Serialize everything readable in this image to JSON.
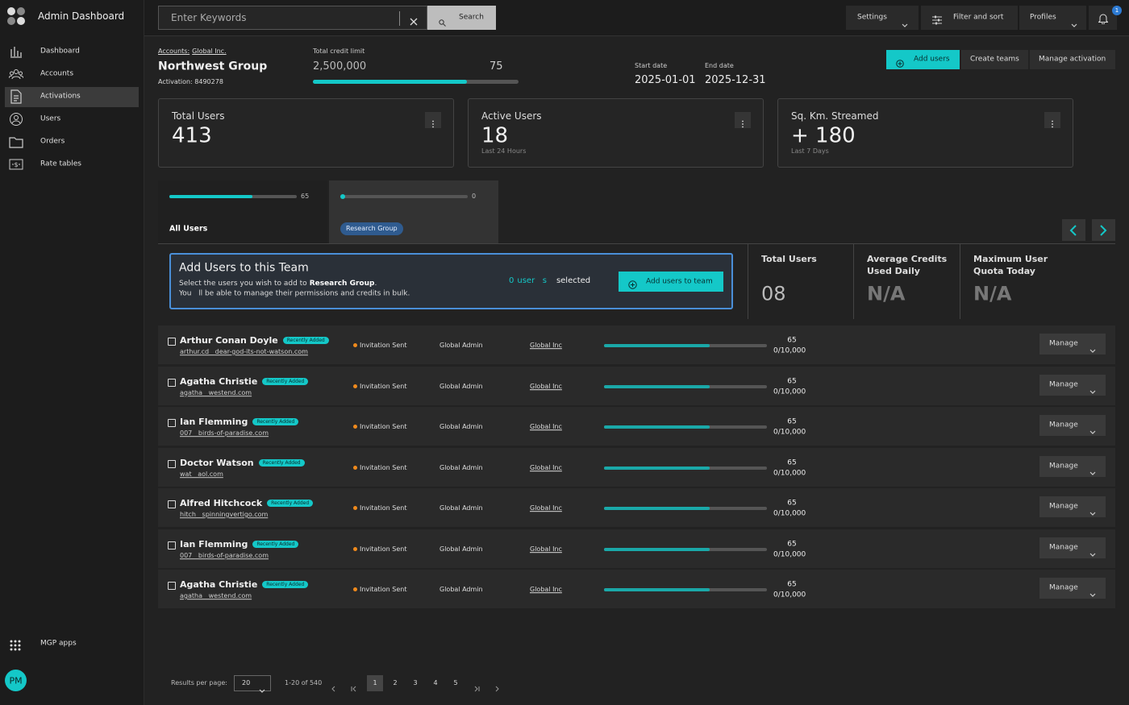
{
  "sidebar": {
    "title": "Admin Dashboard",
    "nav": [
      "Dashboard",
      "Accounts",
      "Activations",
      "Users",
      "Orders",
      "Rate tables"
    ],
    "apps": "MGP apps",
    "avatar": "PM"
  },
  "topbar": {
    "search_placeholder": "Enter Keywords",
    "search_button": "Search",
    "settings": "Settings",
    "filter": "Filter and sort",
    "profiles": "Profiles",
    "notifications": 1
  },
  "header": {
    "breadcrumb_label": "Accounts:",
    "breadcrumb_link": "Global Inc.",
    "title": "Northwest Group",
    "activation": "Activation: 8490278",
    "credit_label": "Total credit limit",
    "credit_value": "2,500,000",
    "credit_progress": 75,
    "start_label": "Start date",
    "start_date": "2025-01-01",
    "end_label": "End date",
    "end_date": "2025-12-31",
    "buttons": [
      "Add users",
      "Create teams",
      "Manage activation"
    ]
  },
  "stats": [
    {
      "title": "Total Users",
      "value": 413
    },
    {
      "title": "Active Users",
      "value": 18,
      "note": "Last 24 Hours"
    },
    {
      "title": "Sq. Km. Streamed",
      "value": "+ 180",
      "note": "Last 7 Days"
    }
  ],
  "tabs": [
    {
      "progress": 65,
      "label": "All Users"
    },
    {
      "progress": 0,
      "label": "Research Group"
    }
  ],
  "add_panel": {
    "title": "Add Users to this Team",
    "text": "Select the users you wish to add to",
    "group": "Research Group",
    "text_end": ".",
    "text2": "You   ll be able to manage their permissions and credits in bulk.",
    "count": 0,
    "unit": "user   s",
    "selected": "selected",
    "button": "Add users to team"
  },
  "summary": [
    {
      "title": "Total Users",
      "value": "08"
    },
    {
      "title": "Average Credits Used Daily",
      "value": "N/A"
    },
    {
      "title": "Maximum User Quota Today",
      "value": "N/A"
    }
  ],
  "users": {
    "rows": [
      {
        "name": "Arthur Conan Doyle",
        "badge": "Recently Added",
        "email": "arthur.cd   dear-god-its-not-watson.com",
        "status": "Invitation Sent",
        "role": "Global Admin",
        "org": "Global Inc",
        "usage": 65,
        "quota": "0/10,000",
        "action": "Manage"
      },
      {
        "name": "Agatha Christie",
        "badge": "Recently Added",
        "email": "agatha   westend.com",
        "status": "Invitation Sent",
        "role": "Global Admin",
        "org": "Global Inc",
        "usage": 65,
        "quota": "0/10,000",
        "action": "Manage"
      },
      {
        "name": "Ian Flemming",
        "badge": "Recently Added",
        "email": "007   birds-of-paradise.com",
        "status": "Invitation Sent",
        "role": "Global Admin",
        "org": "Global Inc",
        "usage": 65,
        "quota": "0/10,000",
        "action": "Manage"
      },
      {
        "name": "Doctor Watson",
        "badge": "Recently Added",
        "email": "wat   aol.com",
        "status": "Invitation Sent",
        "role": "Global Admin",
        "org": "Global Inc",
        "usage": 65,
        "quota": "0/10,000",
        "action": "Manage"
      },
      {
        "name": "Alfred Hitchcock",
        "badge": "Recently Added",
        "email": "hitch   spinningvertigo.com",
        "status": "Invitation Sent",
        "role": "Global Admin",
        "org": "Global Inc",
        "usage": 65,
        "quota": "0/10,000",
        "action": "Manage"
      },
      {
        "name": "Ian Flemming",
        "badge": "Recently Added",
        "email": "007   birds-of-paradise.com",
        "status": "Invitation Sent",
        "role": "Global Admin",
        "org": "Global Inc",
        "usage": 65,
        "quota": "0/10,000",
        "action": "Manage"
      },
      {
        "name": "Agatha Christie",
        "badge": "Recently Added",
        "email": "agatha   westend.com",
        "status": "Invitation Sent",
        "role": "Global Admin",
        "org": "Global Inc",
        "usage": 65,
        "quota": "0/10,000",
        "action": "Manage"
      }
    ]
  },
  "pagination": {
    "label": "Results per page:",
    "per_page": 20,
    "range": "1-20 of 540",
    "pages": [
      1,
      2,
      3,
      4,
      5
    ]
  }
}
